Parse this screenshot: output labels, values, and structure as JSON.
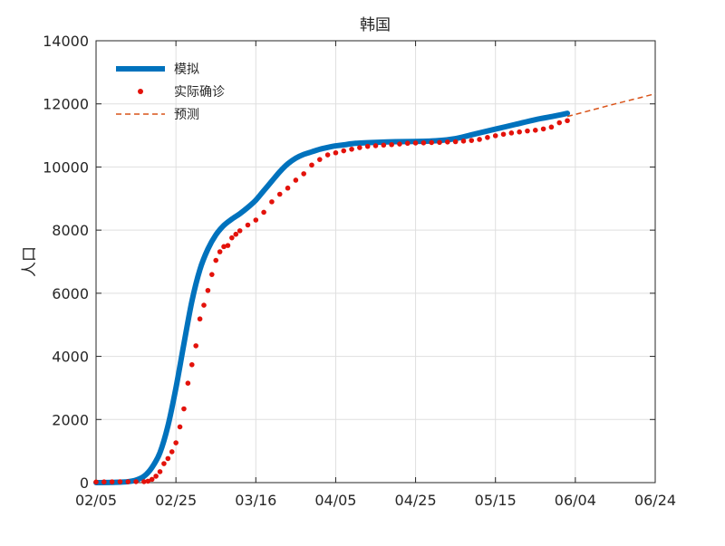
{
  "chart_data": {
    "type": "line",
    "title": "韩国",
    "xlabel": "",
    "ylabel": "人口",
    "x_ticks": [
      "02/05",
      "02/25",
      "03/16",
      "04/05",
      "04/25",
      "05/15",
      "06/04",
      "06/24"
    ],
    "x_tick_days": [
      0,
      20,
      40,
      60,
      80,
      100,
      120,
      140
    ],
    "xlim_days": [
      0,
      140
    ],
    "ylim": [
      0,
      14000
    ],
    "y_ticks": [
      0,
      2000,
      4000,
      6000,
      8000,
      10000,
      12000,
      14000
    ],
    "grid": true,
    "legend": {
      "position": "top-left",
      "entries": [
        "模拟",
        "实际确诊",
        "预测"
      ]
    },
    "colors": {
      "fit": "#0072bd",
      "actual": "#e3120b",
      "forecast": "#d95319",
      "grid": "#dfdfdf",
      "axis": "#262626"
    },
    "series": [
      {
        "name": "模拟",
        "style": "thick-line",
        "x_days": [
          0,
          5,
          8,
          10,
          12,
          14,
          16,
          18,
          20,
          22,
          24,
          26,
          28,
          30,
          32,
          34,
          36,
          38,
          40,
          42,
          44,
          46,
          48,
          50,
          52,
          54,
          56,
          58,
          60,
          62,
          65,
          70,
          75,
          80,
          85,
          90,
          95,
          100,
          105,
          110,
          115,
          118
        ],
        "values": [
          0,
          10,
          30,
          80,
          200,
          480,
          950,
          1800,
          3000,
          4400,
          5750,
          6750,
          7400,
          7850,
          8150,
          8350,
          8520,
          8720,
          8950,
          9250,
          9550,
          9850,
          10100,
          10280,
          10400,
          10480,
          10560,
          10620,
          10670,
          10700,
          10750,
          10780,
          10800,
          10810,
          10830,
          10900,
          11050,
          11200,
          11350,
          11500,
          11620,
          11700
        ]
      },
      {
        "name": "实际确诊",
        "style": "dots",
        "x_days": [
          0,
          2,
          4,
          6,
          8,
          10,
          12,
          13,
          14,
          15,
          16,
          17,
          18,
          19,
          20,
          21,
          22,
          23,
          24,
          25,
          26,
          27,
          28,
          29,
          30,
          31,
          32,
          33,
          34,
          35,
          36,
          38,
          40,
          42,
          44,
          46,
          48,
          50,
          52,
          54,
          56,
          58,
          60,
          62,
          64,
          66,
          68,
          70,
          72,
          74,
          76,
          78,
          80,
          82,
          84,
          86,
          88,
          90,
          92,
          94,
          96,
          98,
          100,
          102,
          104,
          106,
          108,
          110,
          112,
          114,
          116,
          118
        ],
        "values": [
          20,
          22,
          24,
          28,
          28,
          30,
          31,
          46,
          104,
          204,
          346,
          602,
          763,
          977,
          1261,
          1766,
          2337,
          3150,
          3736,
          4335,
          5186,
          5621,
          6088,
          6593,
          7041,
          7313,
          7478,
          7513,
          7755,
          7869,
          7979,
          8162,
          8320,
          8565,
          8897,
          9137,
          9332,
          9583,
          9786,
          10062,
          10237,
          10384,
          10450,
          10512,
          10564,
          10613,
          10653,
          10674,
          10694,
          10708,
          10728,
          10752,
          10761,
          10765,
          10774,
          10780,
          10793,
          10801,
          10822,
          10840,
          10874,
          10936,
          10991,
          11037,
          11078,
          11110,
          11142,
          11165,
          11206,
          11265,
          11402,
          11468
        ]
      },
      {
        "name": "预测",
        "style": "dashed-line",
        "x_days": [
          118,
          124,
          130,
          136,
          140
        ],
        "values": [
          11600,
          11800,
          12000,
          12190,
          12320
        ]
      }
    ]
  }
}
